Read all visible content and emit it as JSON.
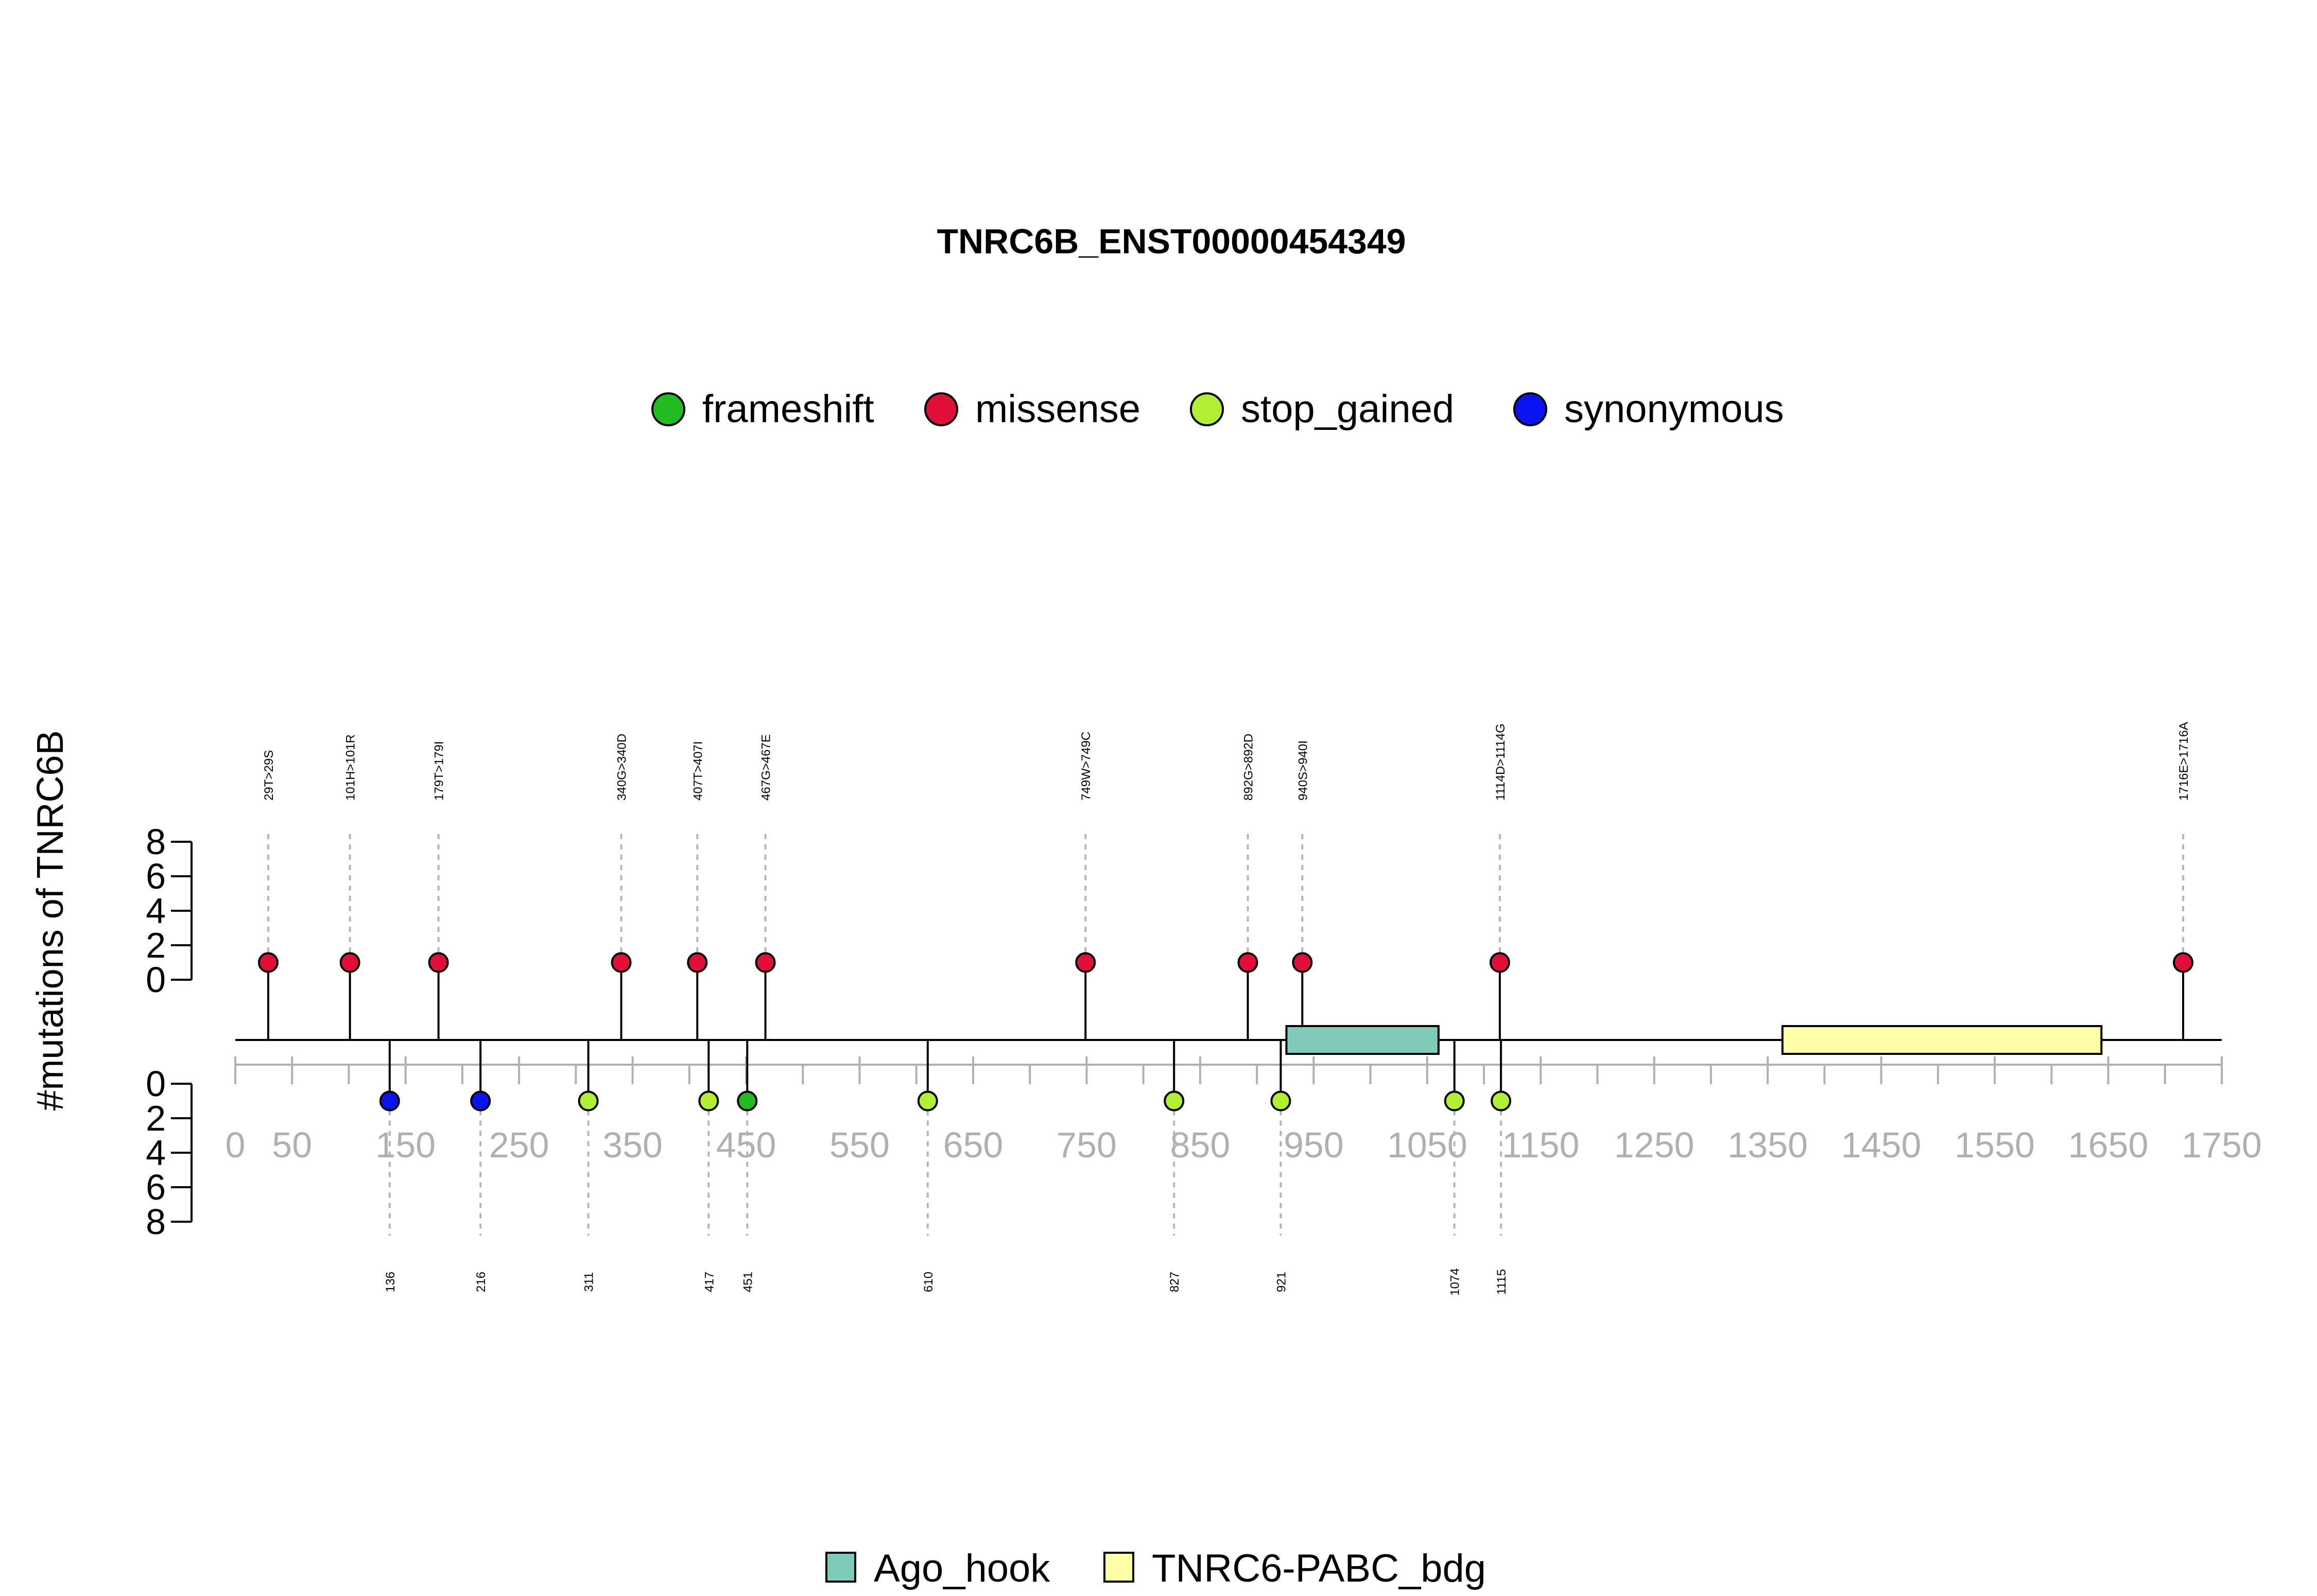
{
  "chart_data": {
    "type": "lollipop",
    "title": "TNRC6B_ENST00000454349",
    "ylabel": "#mutations of TNRC6B",
    "xlim": [
      0,
      1750
    ],
    "x_ticks": [
      0,
      50,
      150,
      250,
      350,
      450,
      550,
      650,
      750,
      850,
      950,
      1050,
      1150,
      1250,
      1350,
      1450,
      1550,
      1650,
      1750
    ],
    "y_ticks": [
      0,
      2,
      4,
      6,
      8
    ],
    "legend": {
      "placement": "top",
      "items": [
        {
          "label": "frameshift",
          "color": "#22BB22"
        },
        {
          "label": "missense",
          "color": "#E0103A"
        },
        {
          "label": "stop_gained",
          "color": "#B2EE33"
        },
        {
          "label": "synonymous",
          "color": "#0A14F0"
        }
      ]
    },
    "domain_legend": {
      "placement": "bottom",
      "items": [
        {
          "label": "Ago_hook",
          "color": "#7DCBB8"
        },
        {
          "label": "TNRC6-PABC_bdg",
          "color": "#FFFFA8"
        }
      ]
    },
    "domains": [
      {
        "name": "Ago_hook",
        "start": 926,
        "end": 1060,
        "color": "#7DCBB8"
      },
      {
        "name": "TNRC6-PABC_bdg",
        "start": 1363,
        "end": 1644,
        "color": "#FFFFA8"
      }
    ],
    "mutations_top": [
      {
        "pos": 29,
        "label": "29T>29S",
        "type": "missense",
        "count": 1
      },
      {
        "pos": 101,
        "label": "101H>101R",
        "type": "missense",
        "count": 1
      },
      {
        "pos": 179,
        "label": "179T>179I",
        "type": "missense",
        "count": 1
      },
      {
        "pos": 340,
        "label": "340G>340D",
        "type": "missense",
        "count": 1
      },
      {
        "pos": 407,
        "label": "407T>407I",
        "type": "missense",
        "count": 1
      },
      {
        "pos": 467,
        "label": "467G>467E",
        "type": "missense",
        "count": 1
      },
      {
        "pos": 749,
        "label": "749W>749C",
        "type": "missense",
        "count": 1
      },
      {
        "pos": 892,
        "label": "892G>892D",
        "type": "missense",
        "count": 1
      },
      {
        "pos": 940,
        "label": "940S>940I",
        "type": "missense",
        "count": 1
      },
      {
        "pos": 1114,
        "label": "1114D>1114G",
        "type": "missense",
        "count": 1
      },
      {
        "pos": 1716,
        "label": "1716E>1716A",
        "type": "missense",
        "count": 1
      }
    ],
    "mutations_bottom": [
      {
        "pos": 136,
        "label": "136",
        "type": "synonymous",
        "count": 1
      },
      {
        "pos": 216,
        "label": "216",
        "type": "synonymous",
        "count": 1
      },
      {
        "pos": 311,
        "label": "311",
        "type": "stop_gained",
        "count": 1
      },
      {
        "pos": 417,
        "label": "417",
        "type": "stop_gained",
        "count": 1
      },
      {
        "pos": 451,
        "label": "451",
        "type": "frameshift",
        "count": 1
      },
      {
        "pos": 610,
        "label": "610",
        "type": "stop_gained",
        "count": 1
      },
      {
        "pos": 827,
        "label": "827",
        "type": "stop_gained",
        "count": 1
      },
      {
        "pos": 921,
        "label": "921",
        "type": "stop_gained",
        "count": 1
      },
      {
        "pos": 1074,
        "label": "1074",
        "type": "stop_gained",
        "count": 1
      },
      {
        "pos": 1115,
        "label": "1115",
        "type": "stop_gained",
        "count": 1
      }
    ]
  }
}
